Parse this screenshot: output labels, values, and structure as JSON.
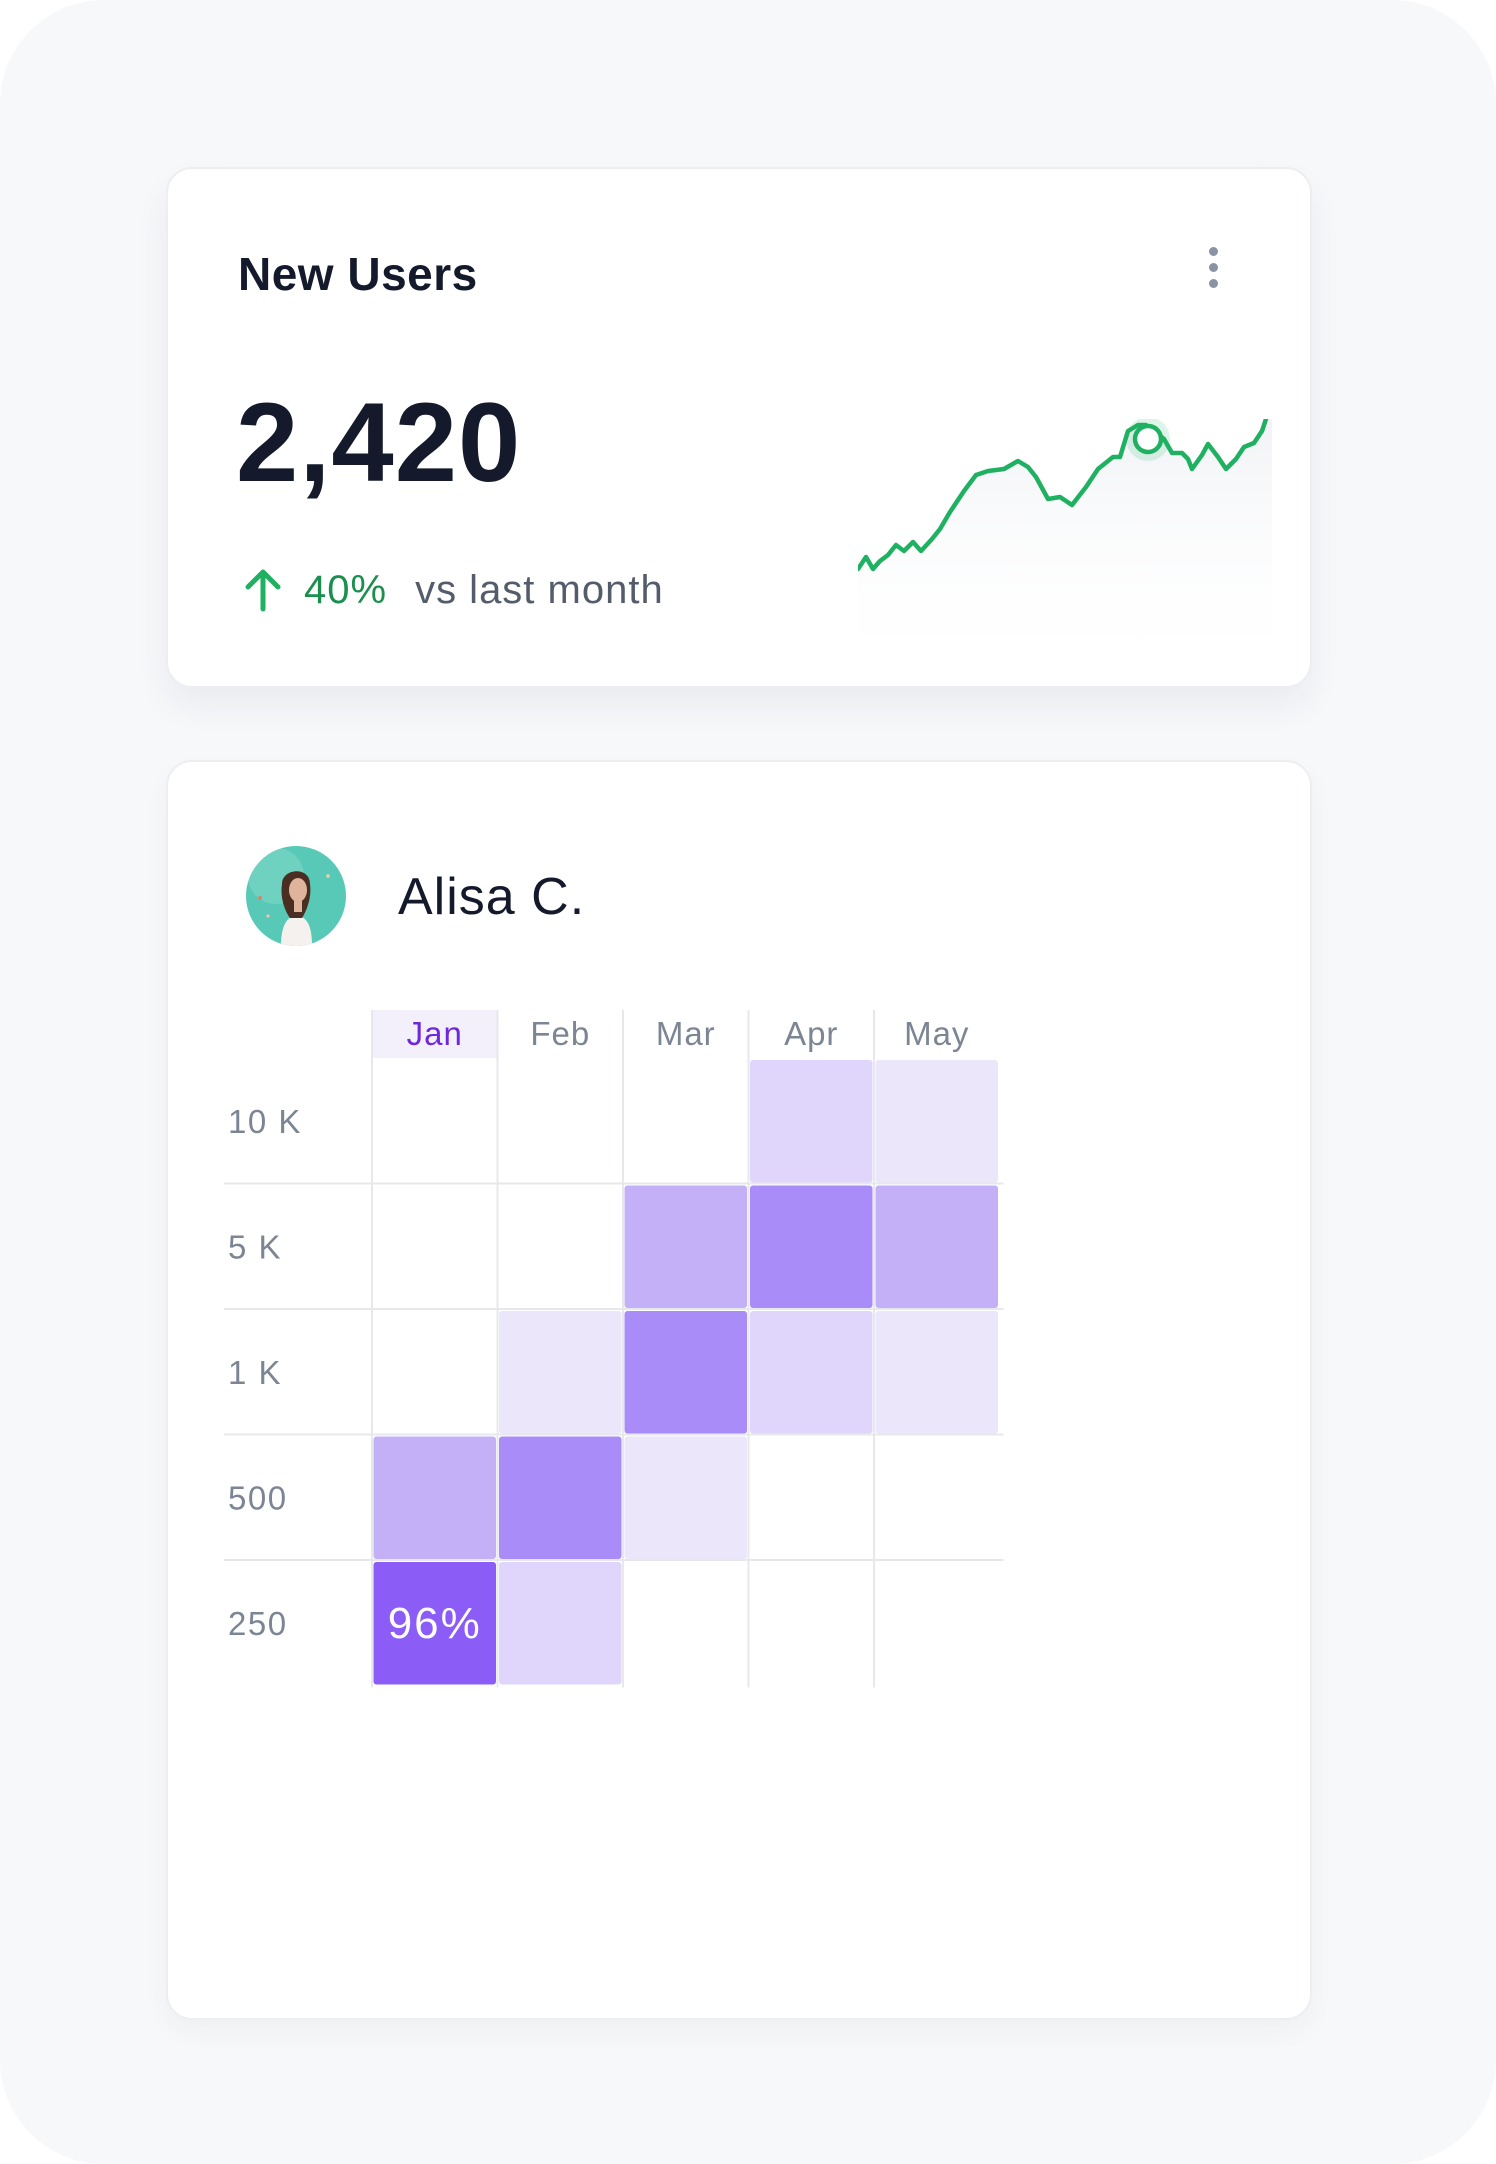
{
  "new_users": {
    "title": "New Users",
    "value": "2,420",
    "trend": {
      "icon": "arrow-up-icon",
      "percent": "40%",
      "label": "vs last month",
      "color": "#1a8f4e"
    },
    "menu_icon": "more-vertical-icon",
    "sparkline_color": "#1fb161"
  },
  "profile": {
    "name": "Alisa C.",
    "avatar_icon": "avatar-photo"
  },
  "chart_data": {
    "type": "heatmap",
    "columns": [
      "Jan",
      "Feb",
      "Mar",
      "Apr",
      "May"
    ],
    "rows": [
      "10 K",
      "5 K",
      "1 K",
      "500",
      "250"
    ],
    "selected_column": "Jan",
    "values": [
      [
        null,
        null,
        null,
        2,
        1
      ],
      [
        null,
        null,
        3,
        4,
        3
      ],
      [
        null,
        1,
        4,
        2,
        1
      ],
      [
        3,
        4,
        1,
        null,
        null
      ],
      [
        5,
        2,
        null,
        null,
        null
      ]
    ],
    "highlight_cell": {
      "row": "250",
      "column": "Jan",
      "label": "96%"
    },
    "colors": {
      "level_1": "#ece6fb",
      "level_2": "#e0d6fb",
      "level_3": "#c4b0f7",
      "level_4": "#a98cf8",
      "level_5": "#8b5cf6",
      "selected_header": "#f3f0fc",
      "selected_text": "#6d28d9"
    }
  }
}
